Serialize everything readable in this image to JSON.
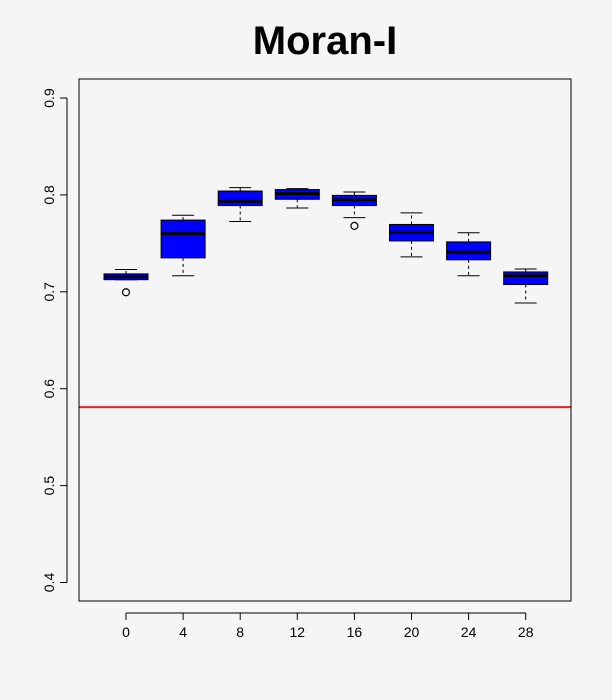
{
  "chart_data": {
    "type": "boxplot",
    "title": "Moran-I",
    "xlabel": "",
    "ylabel": "",
    "ylim": [
      0.4,
      0.9
    ],
    "y_ticks": [
      0.4,
      0.5,
      0.6,
      0.7,
      0.8,
      0.9
    ],
    "categories": [
      "0",
      "4",
      "8",
      "12",
      "16",
      "20",
      "24",
      "28"
    ],
    "boxes": [
      {
        "category": "0",
        "whisker_low": 0.7125,
        "q1": 0.7125,
        "median": 0.7155,
        "q3": 0.7185,
        "whisker_high": 0.723,
        "outliers": [
          0.6995
        ]
      },
      {
        "category": "4",
        "whisker_low": 0.7165,
        "q1": 0.735,
        "median": 0.76,
        "q3": 0.774,
        "whisker_high": 0.779,
        "outliers": []
      },
      {
        "category": "8",
        "whisker_low": 0.7725,
        "q1": 0.789,
        "median": 0.7935,
        "q3": 0.804,
        "whisker_high": 0.8075,
        "outliers": []
      },
      {
        "category": "12",
        "whisker_low": 0.7865,
        "q1": 0.7955,
        "median": 0.8015,
        "q3": 0.8055,
        "whisker_high": 0.8065,
        "outliers": []
      },
      {
        "category": "16",
        "whisker_low": 0.7765,
        "q1": 0.789,
        "median": 0.795,
        "q3": 0.7995,
        "whisker_high": 0.803,
        "outliers": [
          0.768
        ]
      },
      {
        "category": "20",
        "whisker_low": 0.736,
        "q1": 0.7525,
        "median": 0.7615,
        "q3": 0.7695,
        "whisker_high": 0.7815,
        "outliers": []
      },
      {
        "category": "24",
        "whisker_low": 0.7165,
        "q1": 0.733,
        "median": 0.741,
        "q3": 0.7515,
        "whisker_high": 0.761,
        "outliers": []
      },
      {
        "category": "28",
        "whisker_low": 0.6885,
        "q1": 0.7075,
        "median": 0.7165,
        "q3": 0.7205,
        "whisker_high": 0.7235,
        "outliers": []
      }
    ],
    "reference_line": {
      "y": 0.581,
      "color": "#ee2222"
    },
    "box_color": "#0000ff",
    "grid": false,
    "legend": "none"
  }
}
